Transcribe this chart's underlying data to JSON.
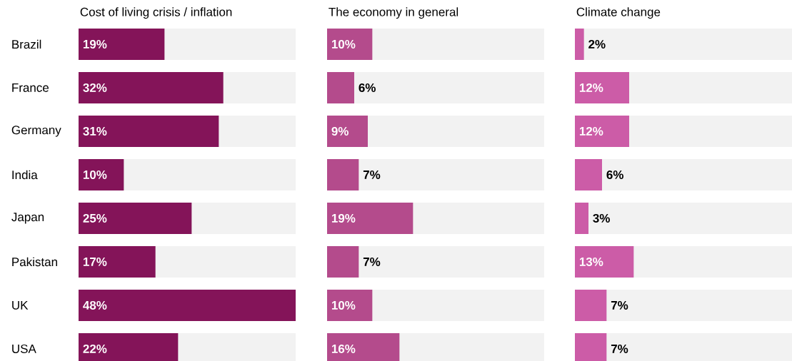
{
  "chart_data": [
    {
      "type": "bar",
      "orientation": "horizontal",
      "title": "Cost of living crisis / inflation",
      "categories": [
        "Brazil",
        "France",
        "Germany",
        "India",
        "Japan",
        "Pakistan",
        "UK",
        "USA"
      ],
      "values": [
        19,
        32,
        31,
        10,
        25,
        17,
        48,
        22
      ],
      "value_labels": [
        "19%",
        "32%",
        "31%",
        "10%",
        "25%",
        "17%",
        "48%",
        "22%"
      ],
      "color": "#841459",
      "xlim": [
        0,
        48
      ],
      "tick_labels": "y"
    },
    {
      "type": "bar",
      "orientation": "horizontal",
      "title": "The economy in general",
      "categories": [
        null,
        null,
        null,
        null,
        null,
        null,
        null,
        null
      ],
      "values": [
        10,
        6,
        9,
        7,
        19,
        7,
        10,
        16
      ],
      "value_labels": [
        "10%",
        "6%",
        "9%",
        "7%",
        "19%",
        "7%",
        "10%",
        "16%"
      ],
      "color": "#b44b8c",
      "xlim": [
        0,
        48
      ]
    },
    {
      "type": "bar",
      "orientation": "horizontal",
      "title": "Climate change",
      "categories": [
        null,
        null,
        null,
        null,
        null,
        null,
        null,
        null
      ],
      "values": [
        2,
        12,
        12,
        6,
        3,
        13,
        7,
        7
      ],
      "value_labels": [
        "2%",
        "12%",
        "12%",
        "6%",
        "3%",
        "13%",
        "7%",
        "7%"
      ],
      "color": "#cc5ca7",
      "xlim": [
        0,
        48
      ]
    }
  ]
}
